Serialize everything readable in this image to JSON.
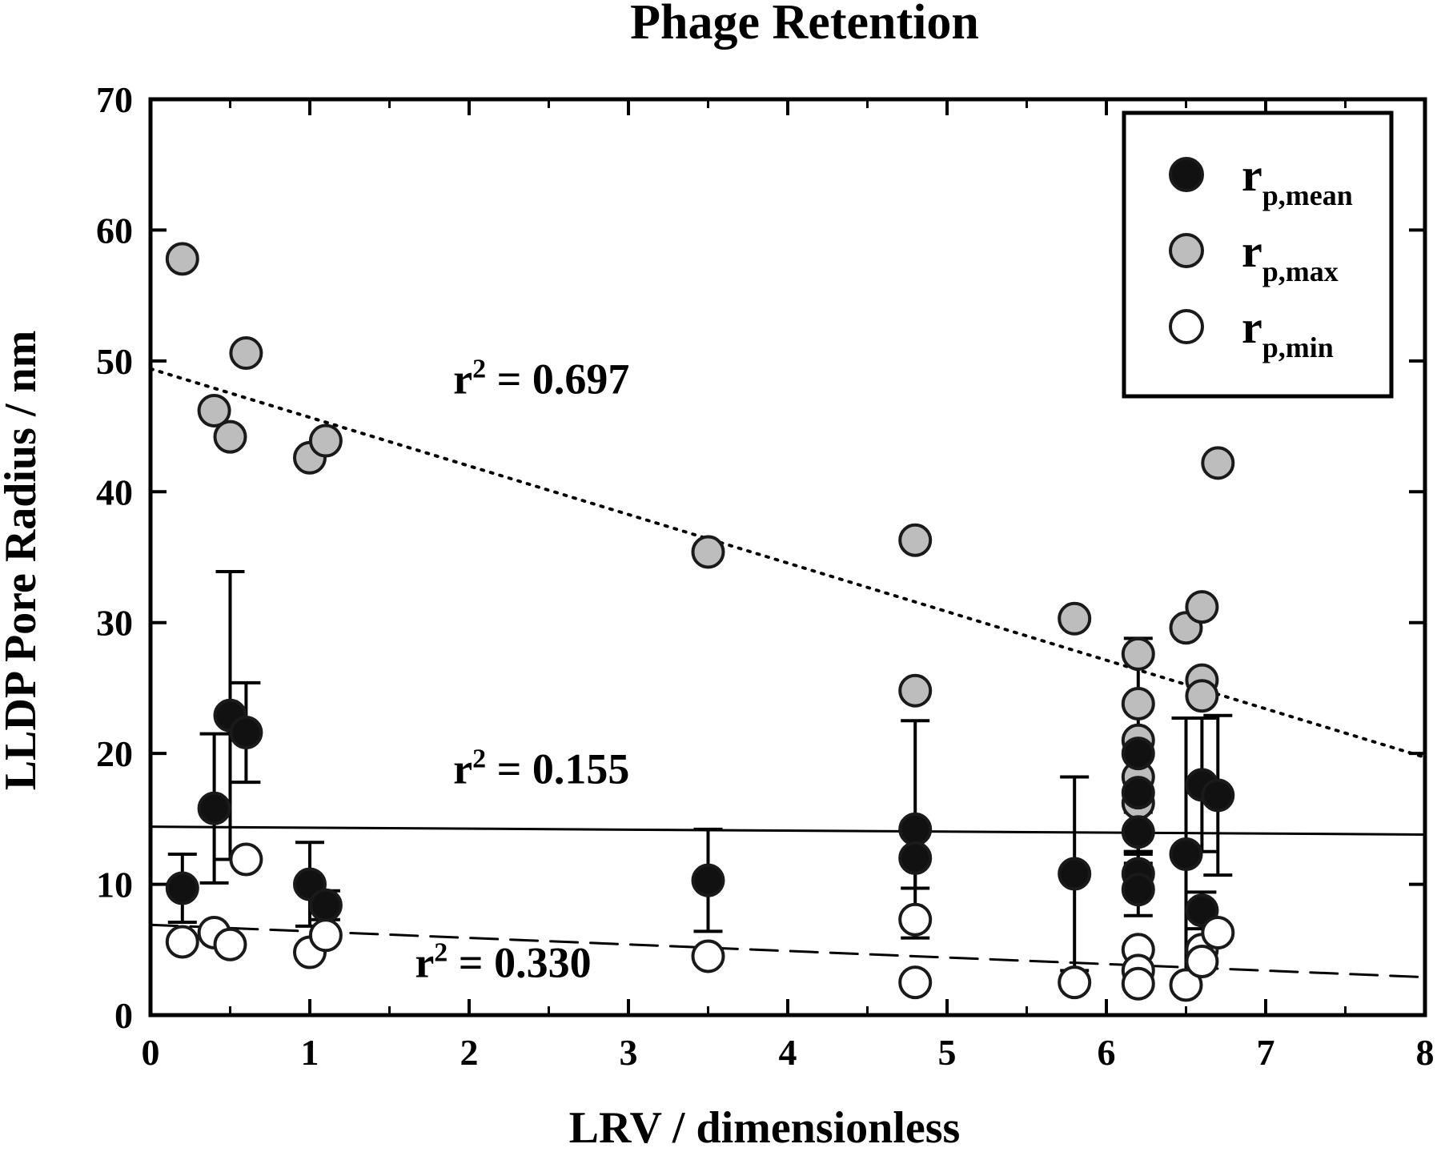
{
  "chart_data": {
    "type": "scatter",
    "title": "Phage Retention",
    "xlabel": "LRV / dimensionless",
    "ylabel": "LLDP Pore Radius / nm",
    "xlim": [
      0,
      8
    ],
    "ylim": [
      0,
      70
    ],
    "x_ticks": [
      0,
      1,
      2,
      3,
      4,
      5,
      6,
      7,
      8
    ],
    "y_ticks": [
      0,
      10,
      20,
      30,
      40,
      50,
      60,
      70
    ],
    "grid": false,
    "legend": {
      "position": "top-right",
      "entries": [
        {
          "series": "mean",
          "main": "r",
          "sub": "p,mean"
        },
        {
          "series": "max",
          "main": "r",
          "sub": "p,max"
        },
        {
          "series": "min",
          "main": "r",
          "sub": "p,min"
        }
      ]
    },
    "series": [
      {
        "name": "rp,mean",
        "key": "mean",
        "fill": "#111111",
        "points": [
          {
            "x": 0.2,
            "y": 9.7,
            "err": 2.6
          },
          {
            "x": 0.4,
            "y": 15.8,
            "err": 5.7
          },
          {
            "x": 0.5,
            "y": 22.9,
            "err": 11.0
          },
          {
            "x": 0.6,
            "y": 21.6,
            "err": 3.8
          },
          {
            "x": 1.0,
            "y": 10.0,
            "err": 3.2
          },
          {
            "x": 1.1,
            "y": 8.4,
            "err": 1.1
          },
          {
            "x": 3.5,
            "y": 10.3,
            "err": 3.9
          },
          {
            "x": 4.8,
            "y": 14.2,
            "err": 8.3
          },
          {
            "x": 4.8,
            "y": 12.0,
            "err": 2.3
          },
          {
            "x": 5.8,
            "y": 10.8,
            "err": 7.4
          },
          {
            "x": 6.2,
            "y": 20.0,
            "err": 8.8
          },
          {
            "x": 6.2,
            "y": 17.0,
            "err": 4.5
          },
          {
            "x": 6.2,
            "y": 14.0,
            "err": 1.5
          },
          {
            "x": 6.2,
            "y": 10.8,
            "err": 1.5
          },
          {
            "x": 6.2,
            "y": 9.6,
            "err": 2.0
          },
          {
            "x": 6.5,
            "y": 12.3,
            "err": 10.4
          },
          {
            "x": 6.6,
            "y": 17.6,
            "err": 5.1
          },
          {
            "x": 6.6,
            "y": 8.0,
            "err": 1.4
          },
          {
            "x": 6.7,
            "y": 16.8,
            "err": 6.1
          }
        ]
      },
      {
        "name": "rp,max",
        "key": "max",
        "fill": "#bdbdbd",
        "points": [
          {
            "x": 0.2,
            "y": 57.8
          },
          {
            "x": 0.4,
            "y": 46.2
          },
          {
            "x": 0.5,
            "y": 44.2
          },
          {
            "x": 0.6,
            "y": 50.6
          },
          {
            "x": 1.0,
            "y": 42.6
          },
          {
            "x": 1.1,
            "y": 43.9
          },
          {
            "x": 3.5,
            "y": 35.4
          },
          {
            "x": 4.8,
            "y": 36.3
          },
          {
            "x": 4.8,
            "y": 24.8
          },
          {
            "x": 5.8,
            "y": 30.3
          },
          {
            "x": 6.2,
            "y": 27.6
          },
          {
            "x": 6.2,
            "y": 23.8
          },
          {
            "x": 6.2,
            "y": 21.0
          },
          {
            "x": 6.2,
            "y": 18.2
          },
          {
            "x": 6.2,
            "y": 16.2
          },
          {
            "x": 6.5,
            "y": 29.6
          },
          {
            "x": 6.6,
            "y": 31.2
          },
          {
            "x": 6.6,
            "y": 25.6
          },
          {
            "x": 6.6,
            "y": 24.4
          },
          {
            "x": 6.7,
            "y": 42.2
          }
        ]
      },
      {
        "name": "rp,min",
        "key": "min",
        "fill": "#ffffff",
        "points": [
          {
            "x": 0.2,
            "y": 5.6
          },
          {
            "x": 0.4,
            "y": 6.3
          },
          {
            "x": 0.5,
            "y": 5.4
          },
          {
            "x": 0.6,
            "y": 11.9
          },
          {
            "x": 1.0,
            "y": 4.8
          },
          {
            "x": 1.1,
            "y": 6.1
          },
          {
            "x": 3.5,
            "y": 4.5
          },
          {
            "x": 4.8,
            "y": 7.3
          },
          {
            "x": 4.8,
            "y": 2.5
          },
          {
            "x": 5.8,
            "y": 2.5
          },
          {
            "x": 6.2,
            "y": 5.0
          },
          {
            "x": 6.2,
            "y": 3.4
          },
          {
            "x": 6.2,
            "y": 2.4
          },
          {
            "x": 6.5,
            "y": 2.3
          },
          {
            "x": 6.6,
            "y": 5.0
          },
          {
            "x": 6.6,
            "y": 4.1
          },
          {
            "x": 6.7,
            "y": 6.3
          }
        ]
      }
    ],
    "fits": [
      {
        "series": "max",
        "style": "dotted",
        "x0": 0,
        "y0": 49.4,
        "x1": 8,
        "y1": 19.7,
        "label": "r² = 0.697",
        "label_x": 1.9,
        "label_y": 47.5
      },
      {
        "series": "mean",
        "style": "solid",
        "x0": 0,
        "y0": 14.4,
        "x1": 8,
        "y1": 13.8,
        "label": "r² = 0.155",
        "label_x": 1.9,
        "label_y": 17.7
      },
      {
        "series": "min",
        "style": "dashed",
        "x0": 0,
        "y0": 6.9,
        "x1": 8,
        "y1": 2.9,
        "label": "r² = 0.330",
        "label_x": 1.66,
        "label_y": 2.9
      }
    ]
  }
}
